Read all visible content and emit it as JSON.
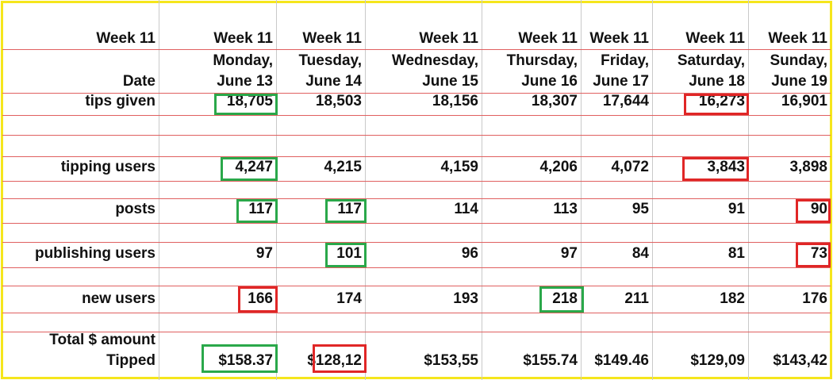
{
  "header": {
    "week_label": "Week 11",
    "date_label": "Date",
    "columns": [
      {
        "week": "Week 11",
        "date": [
          "Monday,",
          "June 13"
        ]
      },
      {
        "week": "Week 11",
        "date": [
          "Tuesday,",
          "June 14"
        ]
      },
      {
        "week": "Week 11",
        "date": [
          "Wednesday,",
          "June 15"
        ]
      },
      {
        "week": "Week 11",
        "date": [
          "Thursday,",
          "June 16"
        ]
      },
      {
        "week": "Week 11",
        "date": [
          "Friday,",
          "June 17"
        ]
      },
      {
        "week": "Week 11",
        "date": [
          "Saturday,",
          "June 18"
        ]
      },
      {
        "week": "Week 11",
        "date": [
          "Sunday,",
          "June 19"
        ]
      }
    ]
  },
  "rows": [
    {
      "label": [
        "tips given"
      ],
      "values": [
        "18,705",
        "18,503",
        "18,156",
        "18,307",
        "17,644",
        "16,273",
        "16,901"
      ]
    },
    {
      "label": [
        "tipping users"
      ],
      "values": [
        "4,247",
        "4,215",
        "4,159",
        "4,206",
        "4,072",
        "3,843",
        "3,898"
      ]
    },
    {
      "label": [
        "posts"
      ],
      "values": [
        "117",
        "117",
        "114",
        "113",
        "95",
        "91",
        "90"
      ]
    },
    {
      "label": [
        "publishing users"
      ],
      "values": [
        "97",
        "101",
        "96",
        "97",
        "84",
        "81",
        "73"
      ]
    },
    {
      "label": [
        "new users"
      ],
      "values": [
        "166",
        "174",
        "193",
        "218",
        "211",
        "182",
        "176"
      ]
    },
    {
      "label": [
        "Total $ amount",
        "Tipped"
      ],
      "values": [
        "$158.37",
        "$128,12",
        "$153,55",
        "$155.74",
        "$149.46",
        "$129,09",
        "$143,42"
      ]
    }
  ]
}
